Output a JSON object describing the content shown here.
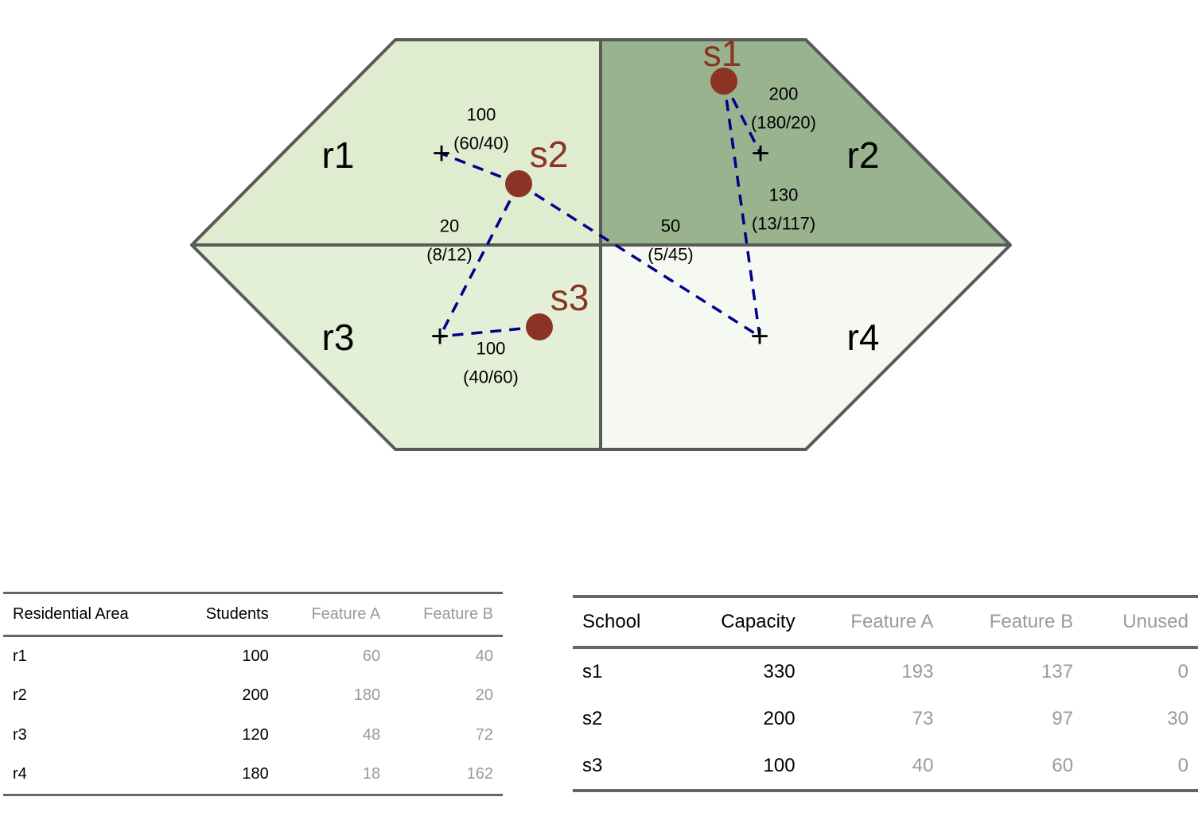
{
  "regions": [
    {
      "id": "r1",
      "label": "r1",
      "fill": "#dfeccf"
    },
    {
      "id": "r2",
      "label": "r2",
      "fill": "#9ab38f"
    },
    {
      "id": "r3",
      "label": "r3",
      "fill": "#e4efd8"
    },
    {
      "id": "r4",
      "label": "r4",
      "fill": "#f6f9f2"
    }
  ],
  "schools": [
    {
      "id": "s1",
      "label": "s1"
    },
    {
      "id": "s2",
      "label": "s2"
    },
    {
      "id": "s3",
      "label": "s3"
    }
  ],
  "centroid_marker": "+",
  "flows": [
    {
      "from": "s2",
      "to": "r1",
      "total": "100",
      "split": "(60/40)"
    },
    {
      "from": "s1",
      "to": "r2",
      "total": "200",
      "split": "(180/20)"
    },
    {
      "from": "s1",
      "to": "r4",
      "total": "130",
      "split": "(13/117)"
    },
    {
      "from": "s2",
      "to": "r3",
      "total": "20",
      "split": "(8/12)"
    },
    {
      "from": "s2",
      "to": "r4",
      "total": "50",
      "split": "(5/45)"
    },
    {
      "from": "s3",
      "to": "r3",
      "total": "100",
      "split": "(40/60)"
    }
  ],
  "colors": {
    "border": "#5a5a5a",
    "school": "#8b3324",
    "flow_line": "#00008b",
    "dim_text": "#9a9a9a"
  },
  "residential_table": {
    "headers": [
      "Residential Area",
      "Students",
      "Feature A",
      "Feature B"
    ],
    "rows": [
      [
        "r1",
        "100",
        "60",
        "40"
      ],
      [
        "r2",
        "200",
        "180",
        "20"
      ],
      [
        "r3",
        "120",
        "48",
        "72"
      ],
      [
        "r4",
        "180",
        "18",
        "162"
      ]
    ]
  },
  "school_table": {
    "headers": [
      "School",
      "Capacity",
      "Feature A",
      "Feature B",
      "Unused"
    ],
    "rows": [
      [
        "s1",
        "330",
        "193",
        "137",
        "0"
      ],
      [
        "s2",
        "200",
        "73",
        "97",
        "30"
      ],
      [
        "s3",
        "100",
        "40",
        "60",
        "0"
      ]
    ]
  }
}
